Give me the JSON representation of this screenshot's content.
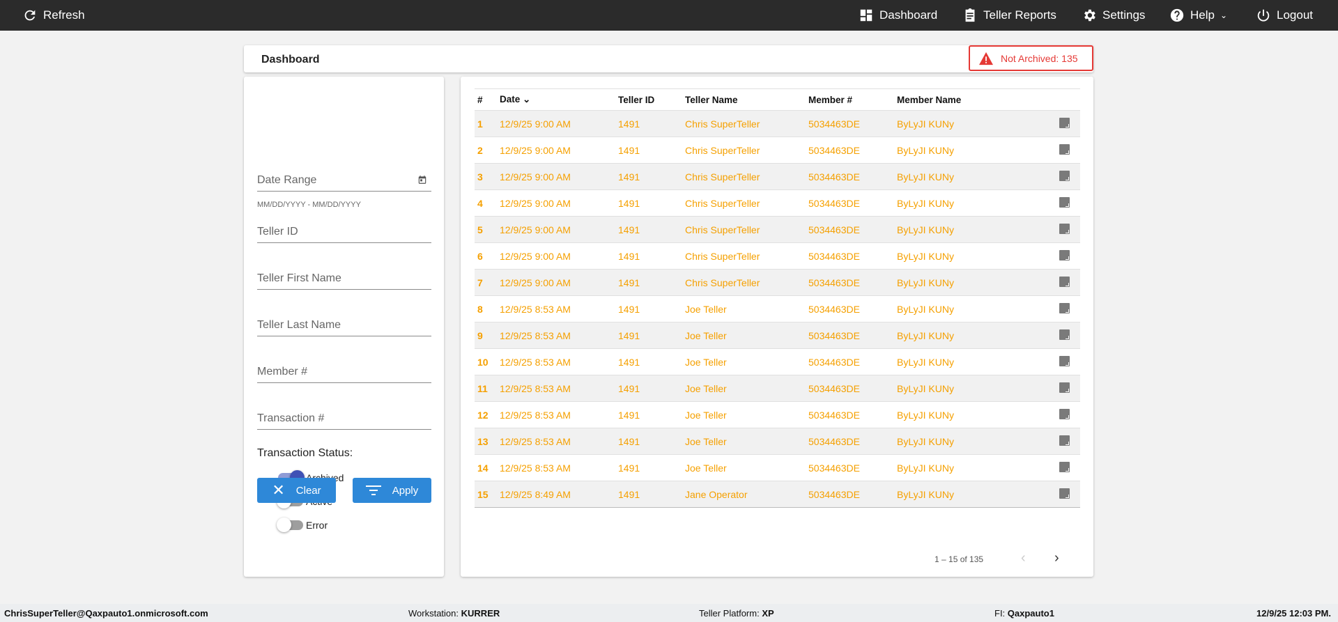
{
  "topbar": {
    "refresh": "Refresh",
    "dashboard": "Dashboard",
    "teller_reports": "Teller Reports",
    "settings": "Settings",
    "help": "Help",
    "logout": "Logout"
  },
  "header": {
    "title": "Dashboard",
    "alert": "Not Archived: 135",
    "alert_color": "#e53935"
  },
  "filters": {
    "date_range": "Date Range",
    "date_hint": "MM/DD/YYYY - MM/DD/YYYY",
    "teller_id": "Teller ID",
    "teller_first": "Teller First Name",
    "teller_last": "Teller Last Name",
    "member": "Member #",
    "transaction": "Transaction #",
    "status_label": "Transaction Status:",
    "toggles": [
      {
        "label": "Archived",
        "on": true
      },
      {
        "label": "Active",
        "on": false
      },
      {
        "label": "Error",
        "on": false
      }
    ],
    "clear": "Clear",
    "apply": "Apply"
  },
  "table": {
    "columns": [
      "#",
      "Date",
      "Teller ID",
      "Teller Name",
      "Member #",
      "Member Name"
    ],
    "rows": [
      [
        "1",
        "12/9/25 9:00 AM",
        "1491",
        "Chris SuperTeller",
        "5034463DE",
        "ByLyJI KUNy"
      ],
      [
        "2",
        "12/9/25 9:00 AM",
        "1491",
        "Chris SuperTeller",
        "5034463DE",
        "ByLyJI KUNy"
      ],
      [
        "3",
        "12/9/25 9:00 AM",
        "1491",
        "Chris SuperTeller",
        "5034463DE",
        "ByLyJI KUNy"
      ],
      [
        "4",
        "12/9/25 9:00 AM",
        "1491",
        "Chris SuperTeller",
        "5034463DE",
        "ByLyJI KUNy"
      ],
      [
        "5",
        "12/9/25 9:00 AM",
        "1491",
        "Chris SuperTeller",
        "5034463DE",
        "ByLyJI KUNy"
      ],
      [
        "6",
        "12/9/25 9:00 AM",
        "1491",
        "Chris SuperTeller",
        "5034463DE",
        "ByLyJI KUNy"
      ],
      [
        "7",
        "12/9/25 9:00 AM",
        "1491",
        "Chris SuperTeller",
        "5034463DE",
        "ByLyJI KUNy"
      ],
      [
        "8",
        "12/9/25 8:53 AM",
        "1491",
        "Joe Teller",
        "5034463DE",
        "ByLyJI KUNy"
      ],
      [
        "9",
        "12/9/25 8:53 AM",
        "1491",
        "Joe Teller",
        "5034463DE",
        "ByLyJI KUNy"
      ],
      [
        "10",
        "12/9/25 8:53 AM",
        "1491",
        "Joe Teller",
        "5034463DE",
        "ByLyJI KUNy"
      ],
      [
        "11",
        "12/9/25 8:53 AM",
        "1491",
        "Joe Teller",
        "5034463DE",
        "ByLyJI KUNy"
      ],
      [
        "12",
        "12/9/25 8:53 AM",
        "1491",
        "Joe Teller",
        "5034463DE",
        "ByLyJI KUNy"
      ],
      [
        "13",
        "12/9/25 8:53 AM",
        "1491",
        "Joe Teller",
        "5034463DE",
        "ByLyJI KUNy"
      ],
      [
        "14",
        "12/9/25 8:53 AM",
        "1491",
        "Joe Teller",
        "5034463DE",
        "ByLyJI KUNy"
      ],
      [
        "15",
        "12/9/25 8:49 AM",
        "1491",
        "Jane Operator",
        "5034463DE",
        "ByLyJI KUNy"
      ]
    ],
    "row_color": "#f5a000",
    "pagination": "1 – 15 of 135"
  },
  "footer": {
    "user": "ChrisSuperTeller@Qaxpauto1.onmicrosoft.com",
    "workstation_label": "Workstation:",
    "workstation": "KURRER",
    "platform_label": "Teller Platform:",
    "platform": "XP",
    "fi_label": "FI:",
    "fi": "Qaxpauto1",
    "datetime": "12/9/25 12:03 PM."
  }
}
